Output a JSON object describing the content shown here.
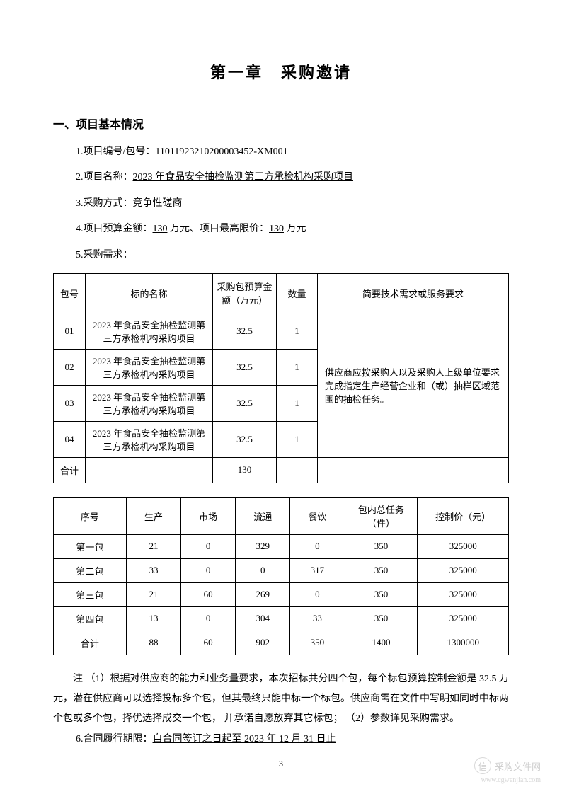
{
  "chapter_title": "第一章　采购邀请",
  "section_title": "一、项目基本情况",
  "items": {
    "item1_label": "1.项目编号/包号：",
    "item1_value": "11011923210200003452-XM001",
    "item2_label": "2.项目名称：",
    "item2_value": "2023 年食品安全抽检监测第三方承检机构采购项目",
    "item3_label": "3.采购方式：",
    "item3_value": "竞争性磋商",
    "item4_prefix": "4.项目预算金额：",
    "item4_amount1": "130",
    "item4_mid": " 万元、项目最高限价：",
    "item4_amount2": "130",
    "item4_suffix": " 万元",
    "item5": "5.采购需求："
  },
  "table1": {
    "headers": {
      "pkg": "包号",
      "name": "标的名称",
      "budget": "采购包预算金额（万元）",
      "qty": "数量",
      "req": "简要技术需求或服务要求"
    },
    "rows": [
      {
        "pkg": "01",
        "name": "2023 年食品安全抽检监测第三方承检机构采购项目",
        "budget": "32.5",
        "qty": "1"
      },
      {
        "pkg": "02",
        "name": "2023 年食品安全抽检监测第三方承检机构采购项目",
        "budget": "32.5",
        "qty": "1"
      },
      {
        "pkg": "03",
        "name": "2023 年食品安全抽检监测第三方承检机构采购项目",
        "budget": "32.5",
        "qty": "1"
      },
      {
        "pkg": "04",
        "name": "2023 年食品安全抽检监测第三方承检机构采购项目",
        "budget": "32.5",
        "qty": "1"
      }
    ],
    "req_text": "供应商应按采购人以及采购人上级单位要求完成指定生产经营企业和（或）抽样区域范围的抽检任务。",
    "total_label": "合计",
    "total_budget": "130"
  },
  "table2": {
    "headers": {
      "seq": "序号",
      "prod": "生产",
      "mkt": "市场",
      "circ": "流通",
      "food": "餐饮",
      "total": "包内总任务（件）",
      "price": "控制价（元）"
    },
    "rows": [
      {
        "seq": "第一包",
        "prod": "21",
        "mkt": "0",
        "circ": "329",
        "food": "0",
        "total": "350",
        "price": "325000"
      },
      {
        "seq": "第二包",
        "prod": "33",
        "mkt": "0",
        "circ": "0",
        "food": "317",
        "total": "350",
        "price": "325000"
      },
      {
        "seq": "第三包",
        "prod": "21",
        "mkt": "60",
        "circ": "269",
        "food": "0",
        "total": "350",
        "price": "325000"
      },
      {
        "seq": "第四包",
        "prod": "13",
        "mkt": "0",
        "circ": "304",
        "food": "33",
        "total": "350",
        "price": "325000"
      },
      {
        "seq": "合计",
        "prod": "88",
        "mkt": "60",
        "circ": "902",
        "food": "350",
        "total": "1400",
        "price": "1300000"
      }
    ]
  },
  "note": "注 （1）根据对供应商的能力和业务量要求，本次招标共分四个包，每个标包预算控制金额是 32.5 万元，潜在供应商可以选择投标多个包，但其最终只能中标一个标包。供应商需在文件中写明如同时中标两个包或多个包，择优选择成交一个包， 并承诺自愿放弃其它标包； （2）参数详见采购需求。",
  "item6_label": "6.合同履行期限：",
  "item6_value": "自合同签订之日起至 2023 年 12 月 31 日止",
  "page_number": "3",
  "watermark": {
    "icon": "信",
    "label": "采购文件网",
    "url": "www.cgwenjian.com"
  },
  "colors": {
    "text": "#000000",
    "border": "#000000",
    "watermark": "#d0d0d0",
    "background": "#ffffff"
  }
}
